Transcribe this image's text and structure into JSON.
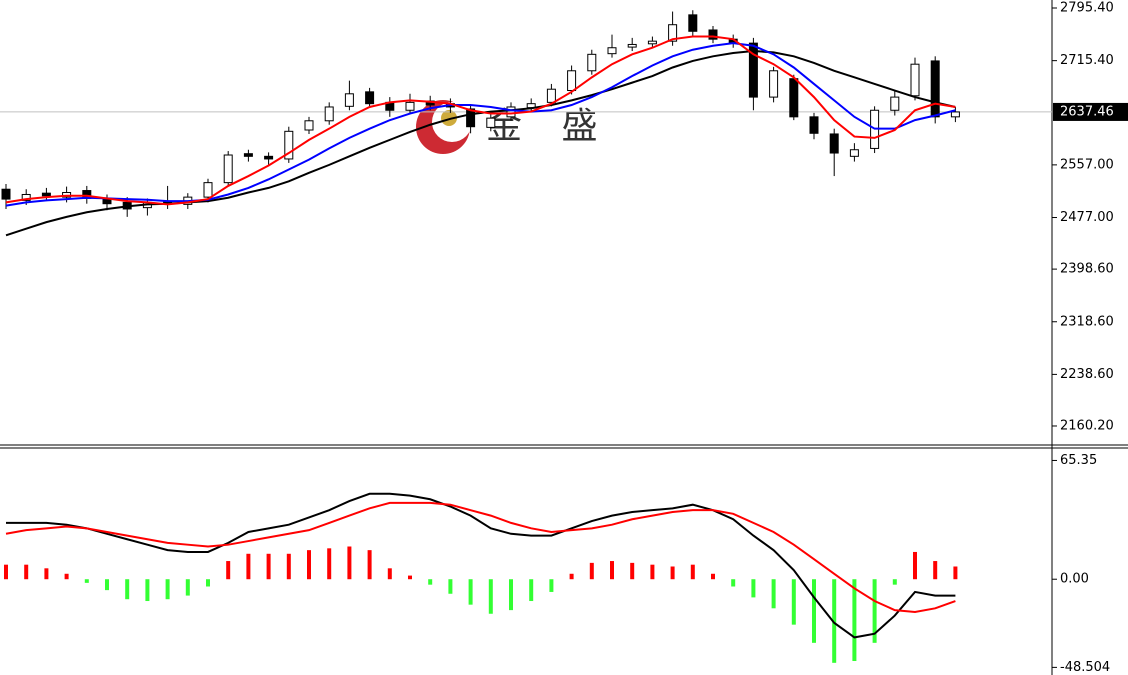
{
  "chart_data": [
    {
      "type": "candlestick",
      "open": [
        2520,
        2503,
        2514,
        2508,
        2518,
        2506,
        2500,
        2492,
        2502,
        2497,
        2508,
        2530,
        2574,
        2570,
        2566,
        2610,
        2624,
        2646,
        2668,
        2652,
        2640,
        2654,
        2650,
        2642,
        2614,
        2630,
        2644,
        2652,
        2670,
        2700,
        2726,
        2736,
        2741,
        2745,
        2785,
        2762,
        2748,
        2742,
        2660,
        2688,
        2630,
        2604,
        2570,
        2582,
        2640,
        2662,
        2715,
        2630
      ],
      "high": [
        2528,
        2520,
        2522,
        2524,
        2525,
        2512,
        2508,
        2506,
        2525,
        2514,
        2536,
        2578,
        2580,
        2576,
        2615,
        2630,
        2652,
        2685,
        2674,
        2660,
        2665,
        2662,
        2658,
        2648,
        2636,
        2652,
        2658,
        2680,
        2708,
        2732,
        2755,
        2750,
        2752,
        2790,
        2792,
        2768,
        2755,
        2750,
        2706,
        2694,
        2636,
        2612,
        2590,
        2646,
        2670,
        2720,
        2722,
        2645
      ],
      "low": [
        2490,
        2496,
        2502,
        2500,
        2498,
        2488,
        2478,
        2480,
        2490,
        2490,
        2500,
        2525,
        2562,
        2555,
        2560,
        2604,
        2618,
        2640,
        2644,
        2630,
        2634,
        2640,
        2636,
        2605,
        2608,
        2624,
        2638,
        2646,
        2664,
        2694,
        2720,
        2730,
        2736,
        2738,
        2752,
        2742,
        2735,
        2640,
        2652,
        2625,
        2596,
        2540,
        2562,
        2575,
        2632,
        2655,
        2620,
        2622
      ],
      "close": [
        2505,
        2512,
        2510,
        2515,
        2506,
        2498,
        2490,
        2500,
        2498,
        2508,
        2530,
        2572,
        2570,
        2566,
        2608,
        2624,
        2645,
        2665,
        2650,
        2640,
        2652,
        2648,
        2645,
        2615,
        2628,
        2645,
        2650,
        2672,
        2700,
        2725,
        2735,
        2740,
        2745,
        2770,
        2760,
        2748,
        2742,
        2660,
        2700,
        2630,
        2605,
        2575,
        2580,
        2640,
        2660,
        2710,
        2630,
        2637.46
      ],
      "overlays": [
        {
          "color": "#000000",
          "values": [
            2450,
            2460,
            2470,
            2478,
            2485,
            2490,
            2494,
            2497,
            2498,
            2500,
            2502,
            2507,
            2515,
            2522,
            2532,
            2545,
            2557,
            2570,
            2583,
            2595,
            2607,
            2618,
            2627,
            2634,
            2638,
            2640,
            2643,
            2648,
            2655,
            2663,
            2672,
            2682,
            2692,
            2705,
            2715,
            2722,
            2727,
            2730,
            2728,
            2722,
            2712,
            2700,
            2690,
            2680,
            2670,
            2660,
            2652,
            2645
          ]
        },
        {
          "color": "#0000ff",
          "values": [
            2495,
            2500,
            2503,
            2505,
            2507,
            2506,
            2505,
            2504,
            2502,
            2502,
            2504,
            2512,
            2522,
            2535,
            2550,
            2565,
            2582,
            2598,
            2612,
            2625,
            2635,
            2643,
            2648,
            2648,
            2645,
            2640,
            2638,
            2640,
            2648,
            2660,
            2675,
            2692,
            2708,
            2722,
            2732,
            2738,
            2742,
            2738,
            2725,
            2705,
            2680,
            2655,
            2630,
            2612,
            2612,
            2625,
            2632,
            2640
          ]
        },
        {
          "color": "#ff0000",
          "values": [
            2500,
            2505,
            2508,
            2510,
            2510,
            2506,
            2502,
            2500,
            2497,
            2500,
            2505,
            2525,
            2540,
            2556,
            2575,
            2595,
            2612,
            2630,
            2645,
            2652,
            2655,
            2653,
            2650,
            2640,
            2635,
            2635,
            2638,
            2650,
            2668,
            2690,
            2710,
            2725,
            2735,
            2748,
            2752,
            2752,
            2748,
            2725,
            2710,
            2690,
            2660,
            2625,
            2600,
            2598,
            2610,
            2640,
            2650,
            2645
          ]
        }
      ],
      "ylim": [
        2131.3,
        2807.56
      ],
      "yticks": [
        {
          "value": 2795.4,
          "label": "2795.40"
        },
        {
          "value": 2715.4,
          "label": "2715.40"
        },
        {
          "value": 2557,
          "label": "2557.00"
        },
        {
          "value": 2477,
          "label": "2477.00"
        },
        {
          "value": 2398.6,
          "label": "2398.60"
        },
        {
          "value": 2318.6,
          "label": "2318.60"
        },
        {
          "value": 2238.6,
          "label": "2238.60"
        },
        {
          "value": 2160.2,
          "label": "2160.20"
        }
      ],
      "current_price": 2637.46,
      "watermark": "金 盛"
    },
    {
      "type": "macd",
      "histogram": [
        8,
        8,
        6,
        3,
        -2,
        -6,
        -11,
        -12,
        -11,
        -9,
        -4,
        10,
        14,
        14,
        14,
        16,
        17,
        18,
        16,
        6,
        2,
        -3,
        -8,
        -14,
        -19,
        -17,
        -12,
        -7,
        3,
        9,
        10,
        9,
        8,
        7,
        8,
        3,
        -4,
        -10,
        -16,
        -25,
        -35,
        -46,
        -45,
        -35,
        -3,
        15,
        10,
        7
      ],
      "positive_color": "#ff0000",
      "negative_color": "#33ff33",
      "series": [
        {
          "color": "#000000",
          "values": [
            31,
            31,
            31,
            30,
            28,
            25,
            22,
            19,
            16,
            15,
            15,
            20,
            26,
            28,
            30,
            34,
            38,
            43,
            47,
            47,
            46,
            44,
            40,
            35,
            28,
            25,
            24,
            24,
            28,
            32,
            35,
            37,
            38,
            39,
            41,
            38,
            33,
            24,
            16,
            5,
            -10,
            -24,
            -32,
            -30,
            -20,
            -7,
            -9,
            -9
          ]
        },
        {
          "color": "#ff0000",
          "values": [
            25,
            27,
            28,
            29,
            28,
            26,
            24,
            22,
            20,
            19,
            18,
            19,
            21,
            23,
            25,
            27,
            31,
            35,
            39,
            42,
            42,
            42,
            41,
            38,
            35,
            31,
            28,
            26,
            27,
            28,
            30,
            33,
            35,
            37,
            38,
            38,
            36,
            31,
            26,
            19,
            11,
            3,
            -5,
            -12,
            -17,
            -18,
            -16,
            -12
          ]
        }
      ],
      "ylim": [
        -52.7,
        72.2
      ],
      "yticks": [
        65.35,
        {
          "value": 0,
          "label": "0.00"
        },
        -48.504
      ]
    }
  ]
}
